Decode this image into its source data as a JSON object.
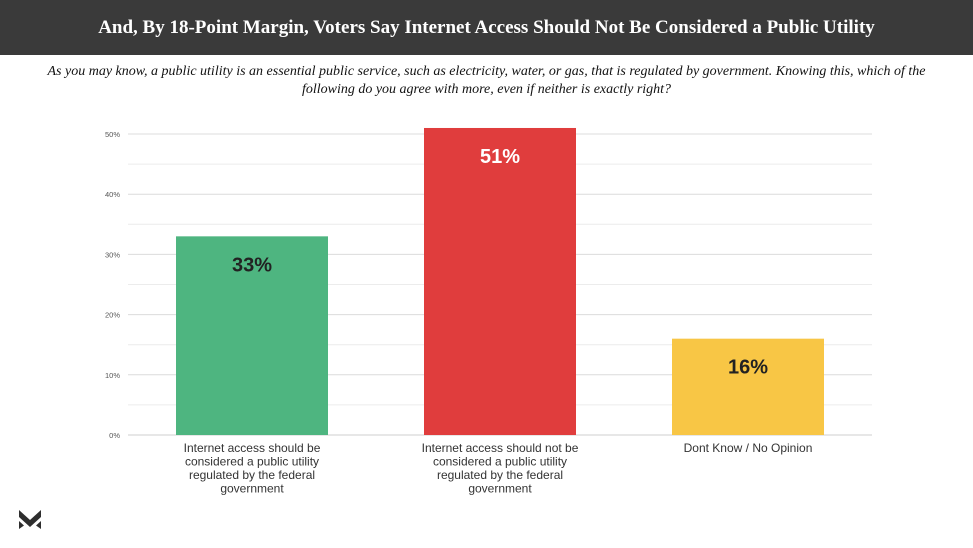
{
  "header": {
    "title": "And, By 18-Point Margin, Voters Say Internet Access Should Not Be Considered a Public Utility"
  },
  "subtitle": "As you may know, a public utility is an essential public service, such as electricity, water, or gas, that is regulated by government. Knowing this, which of the following do you agree with more, even if neither is exactly right?",
  "chart_data": {
    "type": "bar",
    "title": "And, By 18-Point Margin, Voters Say Internet Access Should Not Be Considered a Public Utility",
    "categories": [
      "Internet access should be considered a public utility regulated by the federal government",
      "Internet access should not be considered a public utility regulated by the federal government",
      "Dont Know / No Opinion"
    ],
    "category_lines": [
      [
        "Internet access should be",
        "considered a public utility",
        "regulated by the federal",
        "government"
      ],
      [
        "Internet access should not be",
        "considered a public utility",
        "regulated by the federal",
        "government"
      ],
      [
        "Dont Know / No Opinion"
      ]
    ],
    "values": [
      33,
      51,
      16
    ],
    "data_labels": [
      "33%",
      "51%",
      "16%"
    ],
    "colors": [
      "#4eb580",
      "#e03d3d",
      "#f8c645"
    ],
    "label_colors": [
      "#222222",
      "#ffffff",
      "#222222"
    ],
    "ylim": [
      0,
      50
    ],
    "yticks": [
      0,
      10,
      20,
      30,
      40,
      50
    ],
    "ytick_labels": [
      "0%",
      "10%",
      "20%",
      "30%",
      "40%",
      "50%"
    ],
    "xlabel": "",
    "ylabel": "",
    "grid": true
  }
}
